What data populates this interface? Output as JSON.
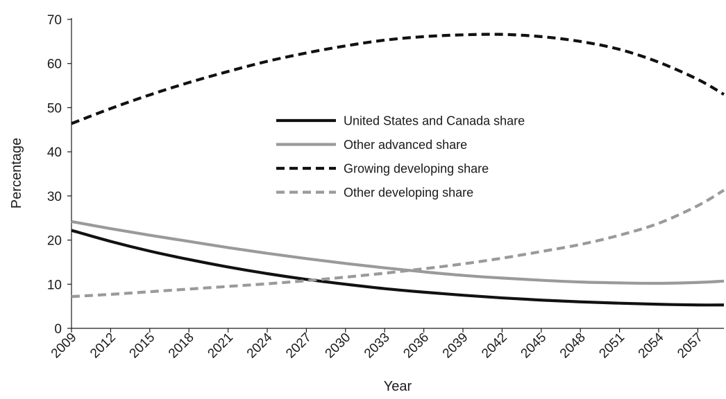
{
  "chart_data": {
    "type": "line",
    "title": "",
    "xlabel": "Year",
    "ylabel": "Percentage",
    "xlim": [
      2009,
      2059
    ],
    "ylim": [
      0,
      70
    ],
    "x_ticks": [
      "2009",
      "2012",
      "2015",
      "2018",
      "2021",
      "2024",
      "2027",
      "2030",
      "2033",
      "2036",
      "2039",
      "2042",
      "2045",
      "2048",
      "2051",
      "2054",
      "2057"
    ],
    "y_ticks": [
      "0",
      "10",
      "20",
      "30",
      "40",
      "50",
      "60",
      "70"
    ],
    "grid": false,
    "legend_position": "center",
    "x": [
      2009,
      2012,
      2015,
      2018,
      2021,
      2024,
      2027,
      2030,
      2033,
      2036,
      2039,
      2042,
      2045,
      2048,
      2051,
      2054,
      2057,
      2059
    ],
    "series": [
      {
        "name": "United States and Canada share",
        "color": "#111111",
        "dash": "solid",
        "values": [
          22.2,
          19.7,
          17.5,
          15.6,
          13.9,
          12.4,
          11.1,
          10.0,
          9.0,
          8.2,
          7.5,
          6.9,
          6.4,
          6.0,
          5.7,
          5.45,
          5.3,
          5.3
        ]
      },
      {
        "name": "Other advanced share",
        "color": "#9a9a9a",
        "dash": "solid",
        "values": [
          24.2,
          22.6,
          21.1,
          19.7,
          18.3,
          17.0,
          15.8,
          14.7,
          13.7,
          12.8,
          12.0,
          11.4,
          10.9,
          10.5,
          10.3,
          10.2,
          10.4,
          10.7
        ]
      },
      {
        "name": "Growing developing share",
        "color": "#111111",
        "dash": "dashed",
        "values": [
          46.4,
          49.8,
          52.9,
          55.7,
          58.2,
          60.5,
          62.4,
          64.0,
          65.3,
          66.1,
          66.5,
          66.6,
          66.1,
          65.0,
          63.2,
          60.3,
          56.4,
          53.0
        ]
      },
      {
        "name": "Other developing share",
        "color": "#9a9a9a",
        "dash": "dashed",
        "values": [
          7.2,
          7.7,
          8.3,
          8.9,
          9.5,
          10.1,
          10.8,
          11.6,
          12.5,
          13.5,
          14.6,
          15.9,
          17.4,
          19.0,
          21.1,
          23.8,
          27.8,
          31.3
        ]
      }
    ]
  }
}
